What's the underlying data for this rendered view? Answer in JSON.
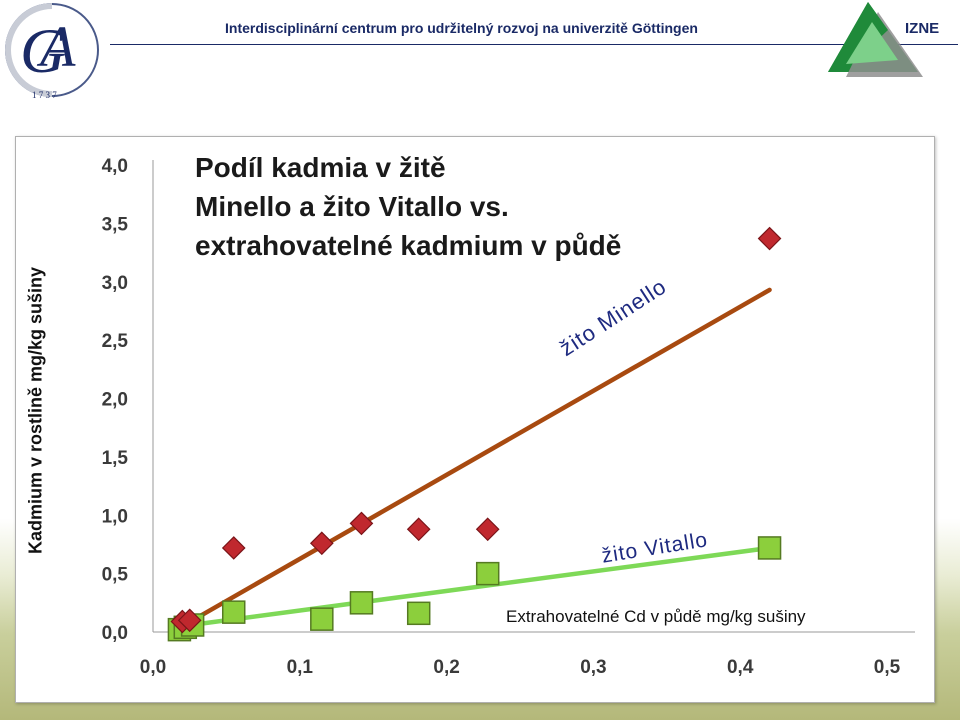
{
  "header": {
    "title": "Interdisciplinární centrum pro udržitelný rozvoj na univerzitě Göttingen",
    "logo_left_icon": "goettingen-university-logo-icon",
    "logo_right_icon": "izne-triangle-logo-icon",
    "logo_right_text": "IZNE",
    "logo_left_year": "1 7 3 7",
    "colors": {
      "text": "#1a2a66",
      "triangle_dark": "#1f8a3a",
      "triangle_light": "#7dd08a"
    }
  },
  "chart_data": {
    "type": "scatter",
    "title_lines": [
      "Podíl kadmia v žitě",
      "Minello a žito Vitallo vs.",
      "extrahovatelné kadmium v půdě"
    ],
    "xlabel": "Extrahovatelné Cd v půdě mg/kg sušiny",
    "ylabel": "Kadmium v rostlině mg/kg sušiny",
    "xlim": [
      0,
      0.5
    ],
    "ylim": [
      0,
      4
    ],
    "x_ticks": [
      "0,0",
      "0,1",
      "0,2",
      "0,3",
      "0,4",
      "0,5"
    ],
    "y_ticks": [
      "0,0",
      "0,5",
      "1,0",
      "1,5",
      "2,0",
      "2,5",
      "3,0",
      "3,5",
      "4,0"
    ],
    "grid": false,
    "series": [
      {
        "name": "žito Minello",
        "marker": "diamond",
        "color": "#c0282e",
        "line_color": "#a84a10",
        "points": [
          [
            0.02,
            0.09
          ],
          [
            0.025,
            0.1
          ],
          [
            0.055,
            0.72
          ],
          [
            0.115,
            0.76
          ],
          [
            0.142,
            0.93
          ],
          [
            0.181,
            0.88
          ],
          [
            0.228,
            0.88
          ],
          [
            0.42,
            3.37
          ]
        ],
        "trend": [
          [
            0.02,
            0.05
          ],
          [
            0.42,
            2.93
          ]
        ]
      },
      {
        "name": "žito Vitallo",
        "marker": "square",
        "color": "#8ccf3c",
        "line_color": "#7ed957",
        "points": [
          [
            0.018,
            0.02
          ],
          [
            0.022,
            0.04
          ],
          [
            0.027,
            0.06
          ],
          [
            0.055,
            0.17
          ],
          [
            0.115,
            0.11
          ],
          [
            0.142,
            0.25
          ],
          [
            0.181,
            0.16
          ],
          [
            0.228,
            0.5
          ],
          [
            0.42,
            0.72
          ]
        ],
        "trend": [
          [
            0.02,
            0.05
          ],
          [
            0.42,
            0.72
          ]
        ]
      }
    ]
  }
}
